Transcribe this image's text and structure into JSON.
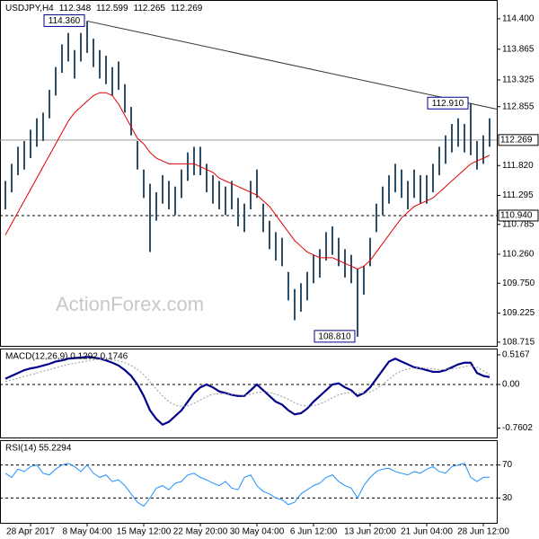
{
  "chart_data": [
    {
      "type": "ohlc",
      "title": "USDJPY,H4",
      "readout": [
        112.348,
        112.599,
        112.265,
        112.269
      ],
      "watermark": "ActionForex.com",
      "color": "#2e4f6a",
      "overlay_color": "#e00000",
      "trend_color": "#333333",
      "categories": [
        null,
        null,
        null,
        null,
        "28 Apr 2017",
        null,
        null,
        null,
        null,
        null,
        null,
        null,
        null,
        "8 May 04:00",
        null,
        null,
        null,
        null,
        null,
        null,
        null,
        null,
        "15 May 12:00",
        null,
        null,
        null,
        null,
        null,
        null,
        null,
        null,
        "22 May 20:00",
        null,
        null,
        null,
        null,
        null,
        null,
        null,
        null,
        "30 May 04:00",
        null,
        null,
        null,
        null,
        null,
        null,
        null,
        null,
        "6 Jun 12:00",
        null,
        null,
        null,
        null,
        null,
        null,
        null,
        null,
        "13 Jun 20:00",
        null,
        null,
        null,
        null,
        null,
        null,
        null,
        null,
        "21 Jun 04:00",
        null,
        null,
        null,
        null,
        null,
        null,
        null,
        null,
        "28 Jun 12:00",
        null
      ],
      "high": [
        111.55,
        111.85,
        112.15,
        112.25,
        112.45,
        112.65,
        112.75,
        113.15,
        113.55,
        113.95,
        114.15,
        113.85,
        114.15,
        114.36,
        114.05,
        113.85,
        113.75,
        113.55,
        113.65,
        113.25,
        112.85,
        112.25,
        111.75,
        111.5,
        111.35,
        111.65,
        111.55,
        111.45,
        111.75,
        112.05,
        112.15,
        112.15,
        111.85,
        111.65,
        111.55,
        111.45,
        111.55,
        111.25,
        111.15,
        111.55,
        111.75,
        111.15,
        110.85,
        110.65,
        110.55,
        109.95,
        109.65,
        109.75,
        109.95,
        110.25,
        110.35,
        110.65,
        110.75,
        110.55,
        110.35,
        110.25,
        110.0,
        110.05,
        110.55,
        111.15,
        111.45,
        111.65,
        111.85,
        111.75,
        111.55,
        111.75,
        111.65,
        111.65,
        111.85,
        112.15,
        112.35,
        112.55,
        112.65,
        112.55,
        112.91,
        112.25,
        112.35,
        112.65
      ],
      "low": [
        111.05,
        111.35,
        111.65,
        111.75,
        111.95,
        112.15,
        112.25,
        112.65,
        113.05,
        113.45,
        113.65,
        113.35,
        113.65,
        113.8,
        113.55,
        113.35,
        113.25,
        113.05,
        113.15,
        112.75,
        112.35,
        111.75,
        111.25,
        110.3,
        110.85,
        111.15,
        111.05,
        110.95,
        111.25,
        111.55,
        111.65,
        111.65,
        111.35,
        111.15,
        111.05,
        110.95,
        111.05,
        110.75,
        110.65,
        111.05,
        111.25,
        110.65,
        110.35,
        110.15,
        110.05,
        109.45,
        109.1,
        109.25,
        109.45,
        109.75,
        109.85,
        110.15,
        110.25,
        110.05,
        109.85,
        109.75,
        108.81,
        109.55,
        110.05,
        110.65,
        110.95,
        111.15,
        111.35,
        111.25,
        111.05,
        111.25,
        111.15,
        111.15,
        111.35,
        111.65,
        111.85,
        112.05,
        112.15,
        112.05,
        112.0,
        111.75,
        111.85,
        112.15
      ],
      "overlay_values": [
        110.6,
        110.8,
        111.0,
        111.2,
        111.4,
        111.6,
        111.8,
        112.0,
        112.2,
        112.4,
        112.6,
        112.75,
        112.85,
        112.95,
        113.05,
        113.1,
        113.1,
        113.05,
        112.9,
        112.7,
        112.5,
        112.3,
        112.2,
        112.05,
        111.95,
        111.9,
        111.85,
        111.85,
        111.85,
        111.85,
        111.85,
        111.8,
        111.75,
        111.7,
        111.6,
        111.55,
        111.5,
        111.45,
        111.4,
        111.35,
        111.3,
        111.2,
        111.1,
        110.95,
        110.8,
        110.65,
        110.5,
        110.4,
        110.3,
        110.25,
        110.2,
        110.2,
        110.2,
        110.15,
        110.1,
        110.05,
        110.0,
        110.05,
        110.15,
        110.3,
        110.45,
        110.6,
        110.75,
        110.9,
        111.0,
        111.1,
        111.15,
        111.2,
        111.25,
        111.35,
        111.45,
        111.55,
        111.65,
        111.75,
        111.85,
        111.9,
        111.95,
        112.0
      ],
      "ylim": [
        108.65,
        114.73
      ],
      "yticks": [
        {
          "value": 114.4,
          "label": "114.400"
        },
        113.865,
        113.325,
        112.855,
        {
          "value": 111.82,
          "label": "111.820"
        },
        111.295,
        110.785,
        {
          "value": 110.26,
          "label": "110.260"
        },
        {
          "value": 109.75,
          "label": "109.750"
        },
        109.225,
        108.715
      ],
      "reference_lines": [
        {
          "value": 112.269,
          "dashed": false
        },
        {
          "value": 110.94,
          "label": "110.940",
          "dashed": true
        }
      ],
      "annotations": [
        {
          "value": 114.36,
          "label": "114.360"
        },
        {
          "value": 112.91,
          "label": "112.910"
        },
        {
          "value": 108.81,
          "label": "108.810"
        }
      ]
    },
    {
      "type": "line",
      "title": "MACD(12,26,9) 0.1292 0.1746",
      "series": [
        {
          "color": "#00008b",
          "width": 2.2,
          "dashed": false,
          "values": [
            0.1,
            0.15,
            0.2,
            0.25,
            0.28,
            0.3,
            0.33,
            0.36,
            0.4,
            0.42,
            0.45,
            0.46,
            0.47,
            0.48,
            0.47,
            0.45,
            0.42,
            0.38,
            0.33,
            0.25,
            0.15,
            0.0,
            -0.2,
            -0.45,
            -0.6,
            -0.7,
            -0.65,
            -0.55,
            -0.45,
            -0.3,
            -0.15,
            -0.05,
            0.0,
            -0.05,
            -0.12,
            -0.15,
            -0.18,
            -0.2,
            -0.2,
            -0.1,
            0.0,
            -0.1,
            -0.2,
            -0.3,
            -0.35,
            -0.45,
            -0.52,
            -0.5,
            -0.42,
            -0.3,
            -0.2,
            -0.1,
            0.0,
            0.02,
            -0.05,
            -0.1,
            -0.2,
            -0.15,
            -0.05,
            0.1,
            0.25,
            0.4,
            0.45,
            0.4,
            0.35,
            0.3,
            0.28,
            0.25,
            0.22,
            0.22,
            0.25,
            0.3,
            0.35,
            0.38,
            0.38,
            0.2,
            0.15,
            0.1292
          ]
        },
        {
          "color": "#999999",
          "width": 1,
          "dashed": true,
          "values": [
            0.05,
            0.08,
            0.11,
            0.14,
            0.17,
            0.2,
            0.23,
            0.26,
            0.29,
            0.32,
            0.35,
            0.37,
            0.39,
            0.41,
            0.43,
            0.44,
            0.44,
            0.43,
            0.41,
            0.38,
            0.33,
            0.26,
            0.17,
            0.05,
            -0.08,
            -0.2,
            -0.3,
            -0.36,
            -0.38,
            -0.37,
            -0.33,
            -0.27,
            -0.21,
            -0.17,
            -0.16,
            -0.16,
            -0.17,
            -0.18,
            -0.19,
            -0.17,
            -0.14,
            -0.13,
            -0.14,
            -0.17,
            -0.21,
            -0.26,
            -0.32,
            -0.36,
            -0.38,
            -0.37,
            -0.34,
            -0.29,
            -0.23,
            -0.18,
            -0.15,
            -0.14,
            -0.15,
            -0.15,
            -0.13,
            -0.08,
            0.0,
            0.09,
            0.18,
            0.24,
            0.27,
            0.29,
            0.29,
            0.28,
            0.27,
            0.26,
            0.26,
            0.27,
            0.29,
            0.31,
            0.33,
            0.3,
            0.24,
            0.1746
          ]
        }
      ],
      "ylim": [
        -0.923,
        0.626
      ],
      "yticks": [
        0.5167,
        {
          "value": 0,
          "label": "0.00"
        },
        -0.7602
      ],
      "levels": [
        0
      ]
    },
    {
      "type": "line",
      "title": "RSI(14) 55.2294",
      "series": [
        {
          "color": "#1e90ff",
          "width": 1,
          "dashed": false,
          "values": [
            60,
            55,
            65,
            62,
            68,
            70,
            60,
            58,
            65,
            70,
            72,
            68,
            62,
            70,
            60,
            55,
            58,
            50,
            52,
            45,
            35,
            25,
            20,
            30,
            42,
            45,
            40,
            48,
            50,
            58,
            60,
            55,
            52,
            48,
            45,
            50,
            42,
            40,
            55,
            58,
            45,
            38,
            35,
            30,
            28,
            22,
            25,
            35,
            40,
            45,
            48,
            55,
            58,
            50,
            45,
            42,
            30,
            45,
            55,
            62,
            65,
            66,
            62,
            60,
            58,
            62,
            60,
            65,
            68,
            62,
            60,
            68,
            70,
            72,
            55,
            50,
            55,
            55.2294
          ]
        }
      ],
      "ylim": [
        0,
        100
      ],
      "yticks": [
        70,
        30
      ],
      "levels": [
        70,
        30
      ]
    }
  ]
}
